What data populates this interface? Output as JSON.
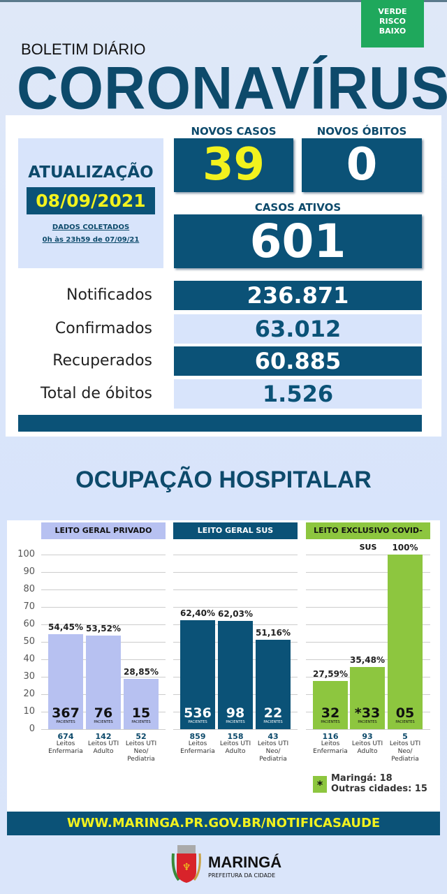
{
  "badge": {
    "line1": "VERDE",
    "line2": "RISCO",
    "line3": "BAIXO",
    "color": "#1fa85c"
  },
  "header": {
    "subtitle": "BOLETIM DIÁRIO",
    "title": "CORONAVÍRUS"
  },
  "update": {
    "label": "ATUALIZAÇÃO",
    "date": "08/09/2021",
    "collected_label": "DADOS COLETADOS",
    "collected_range": "0h às 23h59 de 07/09/21"
  },
  "new_cases": {
    "label": "NOVOS CASOS",
    "value": "39"
  },
  "new_deaths": {
    "label": "NOVOS ÓBITOS",
    "value": "0"
  },
  "active_cases": {
    "label": "CASOS ATIVOS",
    "value": "601"
  },
  "stats": [
    {
      "label": "Notificados",
      "value": "236.871"
    },
    {
      "label": "Confirmados",
      "value": "63.012"
    },
    {
      "label": "Recuperados",
      "value": "60.885"
    },
    {
      "label": "Total de óbitos",
      "value": "1.526"
    }
  ],
  "section_title": "OCUPAÇÃO HOSPITALAR",
  "chart_data": {
    "type": "bar",
    "ylim": [
      0,
      100
    ],
    "yticks": [
      "0",
      "10",
      "20",
      "30",
      "40",
      "50",
      "60",
      "70",
      "80",
      "90",
      "100"
    ],
    "groups": [
      {
        "name": "LEITO GERAL PRIVADO",
        "color": "#b7c1f1",
        "header_text": "#111",
        "bars": [
          {
            "pct": 54.45,
            "pct_label": "54,45%",
            "patients": "367",
            "patients_label": "PACIENTES",
            "beds": "674",
            "bed_type": "Leitos Enfermaria"
          },
          {
            "pct": 53.52,
            "pct_label": "53,52%",
            "patients": "76",
            "patients_label": "PACIENTES",
            "beds": "142",
            "bed_type": "Leitos UTI Adulto"
          },
          {
            "pct": 28.85,
            "pct_label": "28,85%",
            "patients": "15",
            "patients_label": "PACIENTES",
            "beds": "52",
            "bed_type": "Leitos UTI Neo/ Pediatria"
          }
        ]
      },
      {
        "name": "LEITO GERAL SUS",
        "color": "#0b5277",
        "header_text": "#fff",
        "bars": [
          {
            "pct": 62.4,
            "pct_label": "62,40%",
            "patients": "536",
            "patients_label": "PACIENTES",
            "beds": "859",
            "bed_type": "Leitos Enfermaria"
          },
          {
            "pct": 62.03,
            "pct_label": "62,03%",
            "patients": "98",
            "patients_label": "PACIENTES",
            "beds": "158",
            "bed_type": "Leitos UTI Adulto"
          },
          {
            "pct": 51.16,
            "pct_label": "51,16%",
            "patients": "22",
            "patients_label": "PACIENTES",
            "beds": "43",
            "bed_type": "Leitos UTI Neo/ Pediatria"
          }
        ]
      },
      {
        "name": "LEITO EXCLUSIVO COVID-SUS",
        "color": "#8dc63f",
        "header_text": "#111",
        "bars": [
          {
            "pct": 27.59,
            "pct_label": "27,59%",
            "patients": "32",
            "patients_label": "PACIENTES",
            "beds": "116",
            "bed_type": "Leitos Enfermaria"
          },
          {
            "pct": 35.48,
            "pct_label": "35,48%",
            "patients": "*33",
            "patients_label": "PACIENTES",
            "beds": "93",
            "bed_type": "Leitos UTI Adulto"
          },
          {
            "pct": 100,
            "pct_label": "100%",
            "patients": "05",
            "patients_label": "PACIENTES",
            "beds": "5",
            "bed_type": "Leitos UTI Neo/ Pediatria"
          }
        ]
      }
    ]
  },
  "legend": {
    "symbol": "*",
    "line1": "Maringá: 18",
    "line2": "Outras cidades: 15"
  },
  "footer": {
    "url": "WWW.MARINGA.PR.GOV.BR/NOTIFICASAUDE"
  },
  "logo": {
    "name": "MARINGÁ",
    "subtitle": "PREFEITURA DA CIDADE"
  }
}
